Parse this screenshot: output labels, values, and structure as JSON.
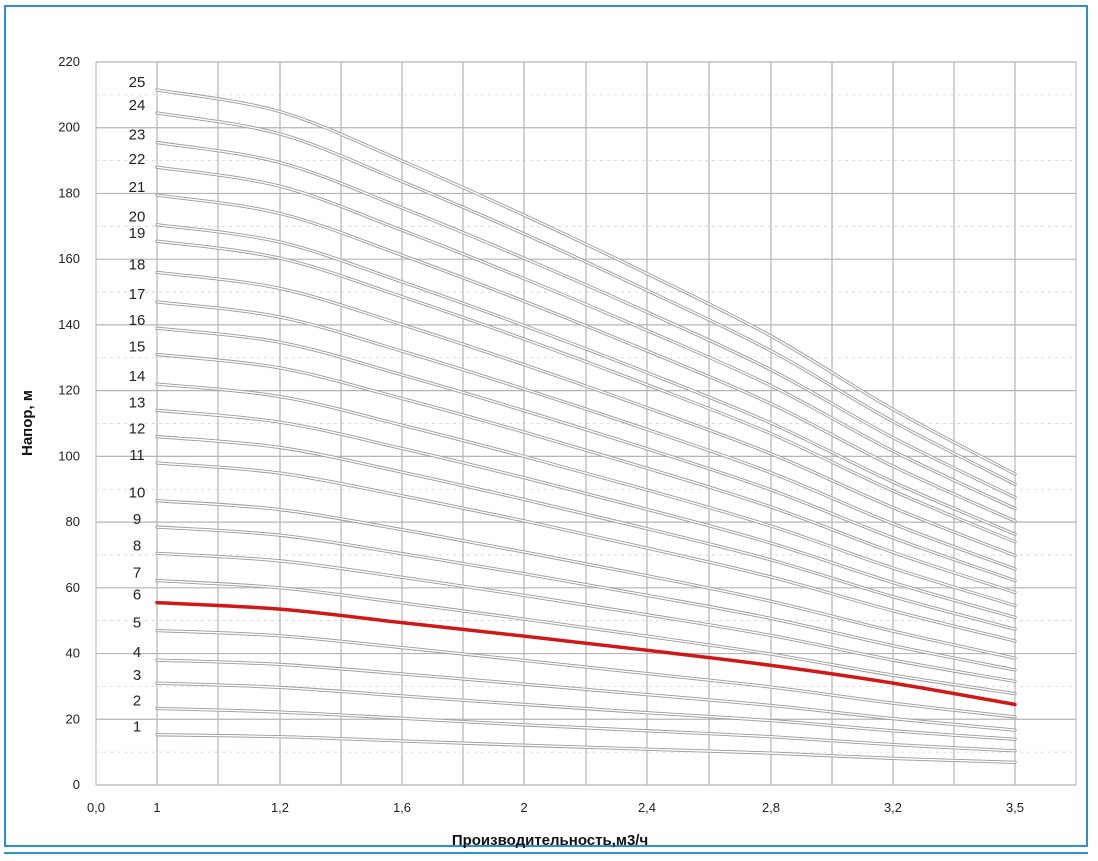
{
  "colors": {
    "frame": "#2f8fd0",
    "grid": "#b5b5b5",
    "curve": "#9a9a9a",
    "highlight": "#d01818"
  },
  "chart_data": {
    "type": "line",
    "title": "",
    "xlabel": "Производительность,м3/ч",
    "ylabel": "Напор, м",
    "xlim": [
      0,
      3.5
    ],
    "ylim": [
      0,
      220
    ],
    "y_ticks": [
      "0",
      "20",
      "40",
      "60",
      "80",
      "100",
      "120",
      "140",
      "160",
      "180",
      "200",
      "220"
    ],
    "x_tick_labels": [
      "0,0",
      "1",
      "1,2",
      "1,6",
      "2",
      "2,4",
      "2,8",
      "3,2",
      "3,5"
    ],
    "grid": true,
    "legend": "none",
    "highlighted_series": "6",
    "x": [
      1,
      1.2,
      1.6,
      2,
      2.4,
      2.8,
      3.2,
      3.5
    ],
    "series": [
      {
        "name": "1",
        "values": [
          15.3,
          14.7,
          13.4,
          12.1,
          10.9,
          9.7,
          8.1,
          6.9
        ]
      },
      {
        "name": "2",
        "values": [
          23.3,
          22.2,
          20.3,
          18.3,
          16.5,
          14.7,
          12.3,
          10.4
        ]
      },
      {
        "name": "3",
        "values": [
          31.0,
          29.7,
          27.1,
          24.5,
          22.0,
          19.6,
          16.5,
          13.9
        ]
      },
      {
        "name": "4",
        "values": [
          38.0,
          36.7,
          33.8,
          30.7,
          27.5,
          24.2,
          20.2,
          16.7
        ]
      },
      {
        "name": "5",
        "values": [
          47.0,
          45.4,
          41.8,
          37.9,
          33.9,
          29.8,
          24.9,
          20.7
        ]
      },
      {
        "name": "6",
        "values": [
          55.5,
          53.5,
          49.4,
          45.3,
          41.0,
          36.4,
          31.0,
          24.5
        ]
      },
      {
        "name": "7",
        "values": [
          62.2,
          60.0,
          55.4,
          50.5,
          45.3,
          39.8,
          33.4,
          27.8
        ]
      },
      {
        "name": "8",
        "values": [
          70.5,
          68.2,
          63.2,
          57.7,
          51.8,
          45.5,
          38.0,
          31.5
        ]
      },
      {
        "name": "9",
        "values": [
          78.5,
          76.0,
          70.4,
          64.3,
          57.7,
          50.7,
          42.4,
          35.0
        ]
      },
      {
        "name": "10",
        "values": [
          86.5,
          83.8,
          77.7,
          70.9,
          63.7,
          55.9,
          46.8,
          38.6
        ]
      },
      {
        "name": "11",
        "values": [
          98.0,
          94.9,
          88.0,
          80.4,
          72.1,
          63.3,
          53.0,
          43.8
        ]
      },
      {
        "name": "12",
        "values": [
          106.0,
          102.7,
          95.2,
          86.9,
          78.0,
          68.5,
          57.3,
          47.4
        ]
      },
      {
        "name": "13",
        "values": [
          114.0,
          110.4,
          102.4,
          93.5,
          83.9,
          73.6,
          61.6,
          51.0
        ]
      },
      {
        "name": "14",
        "values": [
          122.0,
          118.2,
          109.5,
          100.0,
          89.8,
          78.8,
          66.0,
          54.6
        ]
      },
      {
        "name": "15",
        "values": [
          131.0,
          126.9,
          117.6,
          107.4,
          96.4,
          84.6,
          70.8,
          58.6
        ]
      },
      {
        "name": "16",
        "values": [
          139.0,
          134.7,
          124.8,
          113.9,
          102.3,
          89.8,
          75.2,
          62.2
        ]
      },
      {
        "name": "17",
        "values": [
          147.0,
          142.4,
          132.0,
          120.5,
          108.2,
          95.0,
          79.5,
          65.7
        ]
      },
      {
        "name": "18",
        "values": [
          156.0,
          151.1,
          140.1,
          127.9,
          114.8,
          100.8,
          84.4,
          69.8
        ]
      },
      {
        "name": "19",
        "values": [
          165.5,
          160.3,
          148.6,
          135.7,
          121.8,
          106.9,
          89.5,
          74.0
        ]
      },
      {
        "name": "20",
        "values": [
          170.5,
          165.2,
          153.1,
          139.8,
          125.5,
          110.1,
          92.2,
          76.3
        ]
      },
      {
        "name": "21",
        "values": [
          179.5,
          173.9,
          161.2,
          147.2,
          132.1,
          116.0,
          97.0,
          80.3
        ]
      },
      {
        "name": "22",
        "values": [
          188.0,
          182.2,
          168.8,
          154.1,
          138.3,
          121.5,
          101.6,
          84.1
        ]
      },
      {
        "name": "23",
        "values": [
          195.5,
          189.4,
          175.6,
          160.3,
          143.9,
          126.3,
          105.7,
          87.5
        ]
      },
      {
        "name": "24",
        "values": [
          204.5,
          198.1,
          183.6,
          167.7,
          150.5,
          132.1,
          110.6,
          91.5
        ]
      },
      {
        "name": "25",
        "values": [
          211.5,
          204.9,
          189.9,
          173.4,
          155.6,
          136.6,
          114.3,
          94.6
        ]
      }
    ]
  }
}
